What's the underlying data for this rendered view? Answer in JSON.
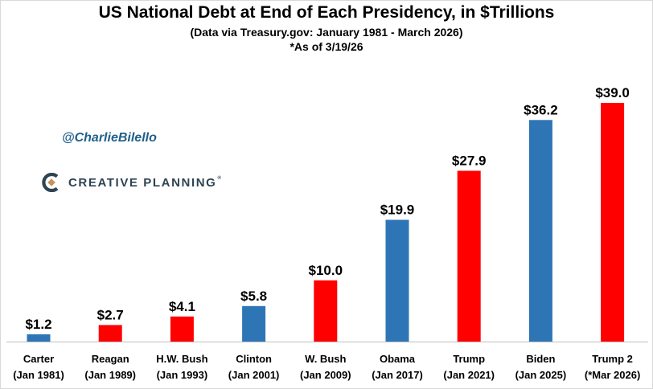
{
  "header": {
    "title": "US National Debt at End of Each Presidency, in $Trillions",
    "subtitle": "(Data via Treasury.gov: January 1981 - March 2026)",
    "note": "*As of 3/19/26"
  },
  "branding": {
    "handle": "@CharlieBilello",
    "company": "CREATIVE PLANNING",
    "trademark": "®",
    "logo_icon": "creative-planning-logo-icon"
  },
  "colors": {
    "democrat": "#2e75b6",
    "republican": "#ff0000",
    "axis": "#bfbfbf"
  },
  "chart_data": {
    "type": "bar",
    "title": "US National Debt at End of Each Presidency, in $Trillions",
    "subtitle": "(Data via Treasury.gov: January 1981 - March 2026)",
    "xlabel": "",
    "ylabel": "",
    "ylim": [
      0,
      42
    ],
    "grid": false,
    "legend": "none",
    "categories": [
      [
        "Carter",
        "(Jan 1981)"
      ],
      [
        "Reagan",
        "(Jan 1989)"
      ],
      [
        "H.W. Bush",
        "(Jan 1993)"
      ],
      [
        "Clinton",
        "(Jan 2001)"
      ],
      [
        "W. Bush",
        "(Jan 2009)"
      ],
      [
        "Obama",
        "(Jan 2017)"
      ],
      [
        "Trump",
        "(Jan 2021)"
      ],
      [
        "Biden",
        "(Jan 2025)"
      ],
      [
        "Trump 2",
        "(*Mar 2026)"
      ]
    ],
    "values": [
      1.2,
      2.7,
      4.1,
      5.8,
      10.0,
      19.9,
      27.9,
      36.2,
      39.0
    ],
    "data_labels": [
      "$1.2",
      "$2.7",
      "$4.1",
      "$5.8",
      "$10.0",
      "$19.9",
      "$27.9",
      "$36.2",
      "$39.0"
    ],
    "party": [
      "democrat",
      "republican",
      "republican",
      "democrat",
      "republican",
      "democrat",
      "republican",
      "democrat",
      "republican"
    ]
  }
}
